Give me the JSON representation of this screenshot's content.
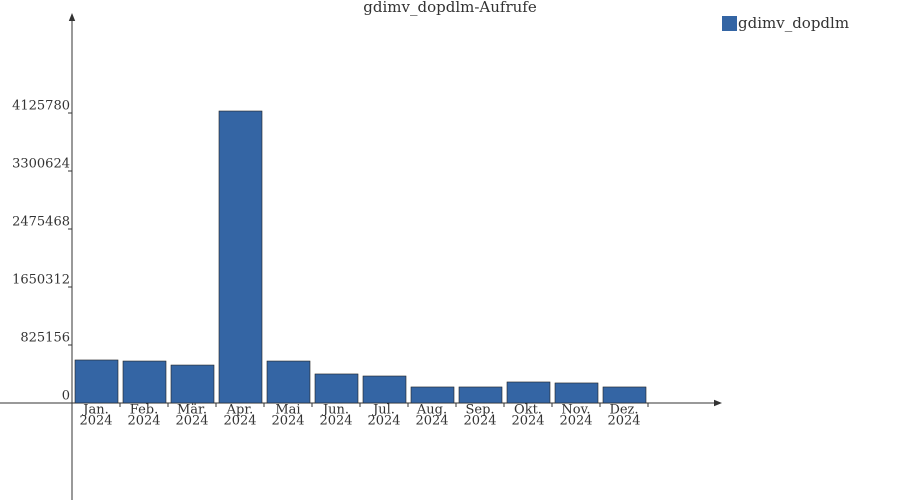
{
  "chart_data": {
    "type": "bar",
    "title": "gdimv_dopdlm-Aufrufe",
    "categories": [
      [
        "Jan.",
        "2024"
      ],
      [
        "Feb.",
        "2024"
      ],
      [
        "Mär.",
        "2024"
      ],
      [
        "Apr.",
        "2024"
      ],
      [
        "Mai",
        "2024"
      ],
      [
        "Jun.",
        "2024"
      ],
      [
        "Jul.",
        "2024"
      ],
      [
        "Aug.",
        "2024"
      ],
      [
        "Sep.",
        "2024"
      ],
      [
        "Okt.",
        "2024"
      ],
      [
        "Nov.",
        "2024"
      ],
      [
        "Dez.",
        "2024"
      ]
    ],
    "series": [
      {
        "name": "gdimv_dopdlm",
        "color": "#3465a4",
        "values": [
          612000,
          597000,
          540000,
          4154000,
          597000,
          413000,
          384000,
          228000,
          228000,
          299000,
          285000,
          228000
        ]
      }
    ],
    "ylim": [
      -1380000,
      5520000
    ],
    "yticks": [
      0,
      825156,
      1650312,
      2475468,
      3300624,
      4125780
    ],
    "legend": "top-right"
  }
}
